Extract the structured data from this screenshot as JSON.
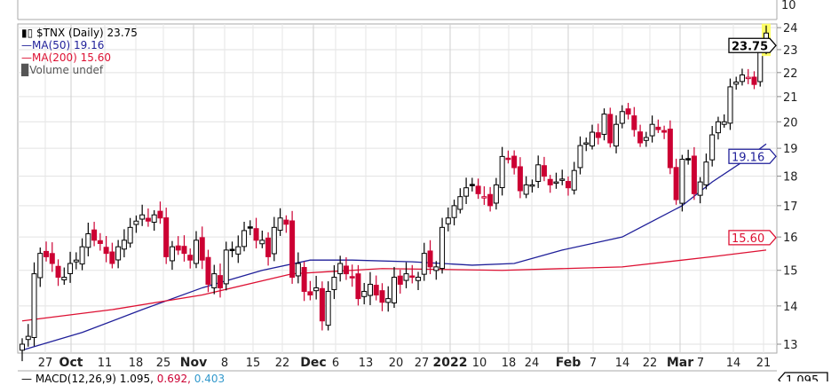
{
  "legend": {
    "symbol": "$TNX (Daily) 23.75",
    "ma50": "MA(50) 19.16",
    "ma200": "MA(200) 15.60",
    "volume": "Volume undef"
  },
  "macd": {
    "label": "MACD(12,26,9) 1.095,",
    "v2": "0.692,",
    "v3": "0.403",
    "tag": "1.095"
  },
  "colors": {
    "up": "#000000",
    "down": "#cc0033",
    "ma50": "#1f1f99",
    "ma200": "#dd1133",
    "last": "#ffff66"
  },
  "chart_data": {
    "type": "candlestick",
    "title": "$TNX (Daily)",
    "y_scale": "log",
    "ylim": [
      12.7,
      24.3
    ],
    "y_ticks": [
      "13",
      "14",
      "15",
      "16",
      "17",
      "18",
      "19",
      "20",
      "21",
      "22",
      "23",
      "24"
    ],
    "upper_panel_tick": "10",
    "x_ticks": [
      "27",
      "Oct",
      "11",
      "18",
      "25",
      "Nov",
      "8",
      "15",
      "22",
      "Dec",
      "6",
      "13",
      "20",
      "27",
      "2022",
      "10",
      "18",
      "24",
      "Feb",
      "7",
      "14",
      "22",
      "Mar",
      "7",
      "14",
      "21"
    ],
    "closes": [
      13.0,
      13.2,
      14.9,
      15.5,
      15.4,
      15.2,
      14.8,
      14.8,
      15.2,
      15.3,
      15.7,
      16.1,
      15.9,
      15.8,
      15.5,
      15.2,
      15.7,
      15.9,
      16.3,
      16.5,
      16.7,
      16.5,
      16.7,
      16.6,
      15.4,
      15.7,
      15.6,
      15.5,
      15.3,
      15.9,
      15.3,
      14.6,
      14.9,
      14.5,
      15.6,
      15.6,
      15.7,
      16.2,
      16.3,
      15.9,
      15.9,
      15.4,
      16.3,
      16.6,
      16.4,
      14.8,
      15.2,
      14.4,
      14.3,
      14.5,
      13.6,
      14.4,
      14.8,
      15.2,
      14.9,
      14.8,
      14.2,
      14.4,
      14.6,
      14.3,
      14.1,
      14.2,
      14.8,
      14.6,
      14.9,
      14.8,
      14.8,
      15.5,
      15.1,
      15.1,
      16.3,
      16.6,
      17.0,
      17.3,
      17.6,
      17.7,
      17.4,
      17.3,
      17.0,
      17.7,
      18.7,
      18.6,
      18.3,
      17.5,
      17.7,
      17.7,
      18.4,
      18.0,
      17.7,
      17.8,
      17.9,
      17.6,
      18.2,
      19.1,
      19.2,
      19.6,
      19.4,
      20.3,
      19.2,
      19.9,
      20.4,
      20.3,
      19.7,
      19.2,
      19.4,
      19.9,
      19.7,
      19.6,
      18.3,
      17.2,
      18.6,
      18.6,
      17.4,
      17.8,
      18.5,
      19.5,
      20.0,
      20.0,
      21.4,
      21.6,
      21.9,
      21.8,
      21.5,
      23.1,
      23.75
    ],
    "series": [
      {
        "name": "MA(50)",
        "last": 19.16,
        "points": [
          [
            0,
            12.85
          ],
          [
            10,
            13.3
          ],
          [
            20,
            13.9
          ],
          [
            30,
            14.5
          ],
          [
            40,
            15.0
          ],
          [
            48,
            15.3
          ],
          [
            55,
            15.3
          ],
          [
            65,
            15.25
          ],
          [
            75,
            15.15
          ],
          [
            82,
            15.2
          ],
          [
            90,
            15.6
          ],
          [
            100,
            16.0
          ],
          [
            110,
            17.0
          ],
          [
            115,
            17.8
          ],
          [
            120,
            18.5
          ],
          [
            124,
            19.16
          ]
        ]
      },
      {
        "name": "MA(200)",
        "last": 15.6,
        "points": [
          [
            0,
            13.6
          ],
          [
            15,
            13.9
          ],
          [
            30,
            14.3
          ],
          [
            45,
            14.9
          ],
          [
            60,
            15.05
          ],
          [
            80,
            15.0
          ],
          [
            100,
            15.1
          ],
          [
            115,
            15.4
          ],
          [
            124,
            15.6
          ]
        ]
      }
    ],
    "last_value": "23.75",
    "ma50_tag": "19.16",
    "ma200_tag": "15.60"
  }
}
